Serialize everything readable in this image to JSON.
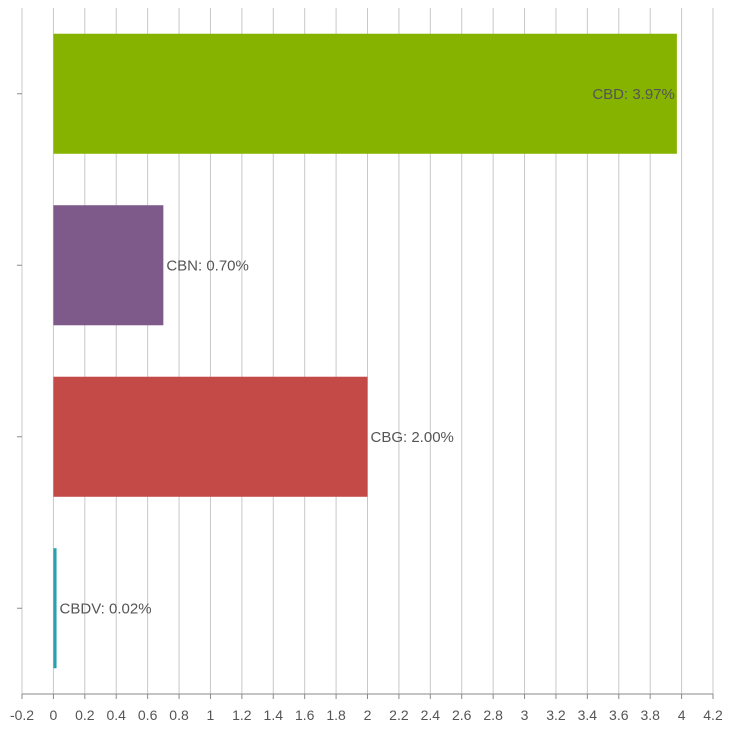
{
  "chart_data": {
    "type": "bar",
    "orientation": "horizontal",
    "categories": [
      "CBD",
      "CBN",
      "CBG",
      "CBDV"
    ],
    "values": [
      3.97,
      0.7,
      2.0,
      0.02
    ],
    "data_labels": [
      "CBD: 3.97%",
      "CBN: 0.70%",
      "CBG: 2.00%",
      "CBDV: 0.02%"
    ],
    "colors": [
      "#86b300",
      "#7e5a8a",
      "#c34a47",
      "#2a9fb0"
    ],
    "xlim": [
      -0.2,
      4.2
    ],
    "x_ticks": [
      -0.2,
      0,
      0.2,
      0.4,
      0.6,
      0.8,
      1,
      1.2,
      1.4,
      1.6,
      1.8,
      2,
      2.2,
      2.4,
      2.6,
      2.8,
      3,
      3.2,
      3.4,
      3.6,
      3.8,
      4,
      4.2
    ],
    "x_tick_labels": [
      "-0.2",
      "0",
      "0.2",
      "0.4",
      "0.6",
      "0.8",
      "1",
      "1.2",
      "1.4",
      "1.6",
      "1.8",
      "2",
      "2.2",
      "2.4",
      "2.6",
      "2.8",
      "3",
      "3.2",
      "3.4",
      "3.6",
      "3.8",
      "4",
      "4.2"
    ],
    "grid": "vertical",
    "legend": "none",
    "title": "",
    "xlabel": "",
    "ylabel": ""
  }
}
